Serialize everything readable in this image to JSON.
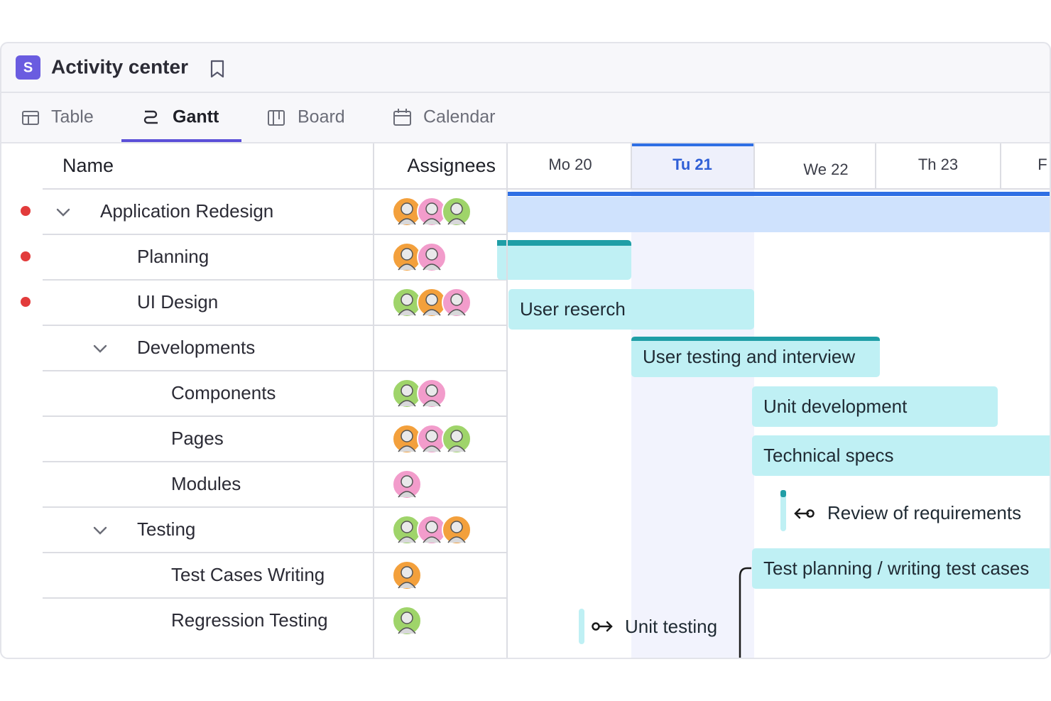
{
  "header": {
    "logo": "S",
    "title": "Activity center"
  },
  "tabs": [
    {
      "label": "Table",
      "active": false
    },
    {
      "label": "Gantt",
      "active": true
    },
    {
      "label": "Board",
      "active": false
    },
    {
      "label": "Calendar",
      "active": false
    }
  ],
  "columns": [
    "Name",
    "Assignees"
  ],
  "days": [
    {
      "label": "Mo 20",
      "today": false
    },
    {
      "label": "Tu 21",
      "today": true
    },
    {
      "label": "We 22",
      "today": false
    },
    {
      "label": "Th 23",
      "today": false
    },
    {
      "label": "F",
      "today": false
    }
  ],
  "rows": [
    {
      "name": "Application Redesign",
      "dot": true,
      "chevron": true,
      "assignees": [
        "#f3a03c",
        "#f29ccb",
        "#9fd46a"
      ]
    },
    {
      "name": "Planning",
      "dot": true,
      "chevron": false,
      "assignees": [
        "#f3a03c",
        "#f29ccb"
      ]
    },
    {
      "name": "UI Design",
      "dot": true,
      "chevron": false,
      "assignees": [
        "#9fd46a",
        "#f3a03c",
        "#f29ccb"
      ]
    },
    {
      "name": "Developments",
      "dot": false,
      "chevron": true,
      "assignees": []
    },
    {
      "name": "Components",
      "dot": false,
      "chevron": false,
      "assignees": [
        "#9fd46a",
        "#f29ccb"
      ]
    },
    {
      "name": "Pages",
      "dot": false,
      "chevron": false,
      "assignees": [
        "#f3a03c",
        "#f29ccb",
        "#9fd46a"
      ]
    },
    {
      "name": "Modules",
      "dot": false,
      "chevron": false,
      "assignees": [
        "#f29ccb"
      ]
    },
    {
      "name": "Testing",
      "dot": false,
      "chevron": true,
      "assignees": [
        "#9fd46a",
        "#f29ccb",
        "#f3a03c"
      ]
    },
    {
      "name": "Test Cases Writing",
      "dot": false,
      "chevron": false,
      "assignees": [
        "#f3a03c"
      ]
    },
    {
      "name": "Regression Testing",
      "dot": false,
      "chevron": false,
      "assignees": [
        "#9fd46a"
      ]
    }
  ],
  "bars": [
    {
      "label": "User reserch"
    },
    {
      "label": "User testing and interview"
    },
    {
      "label": "Unit development"
    },
    {
      "label": "Technical specs"
    },
    {
      "label": "Review of  requirements"
    },
    {
      "label": "Test planning / writing test cases"
    },
    {
      "label": "Unit testing"
    }
  ]
}
